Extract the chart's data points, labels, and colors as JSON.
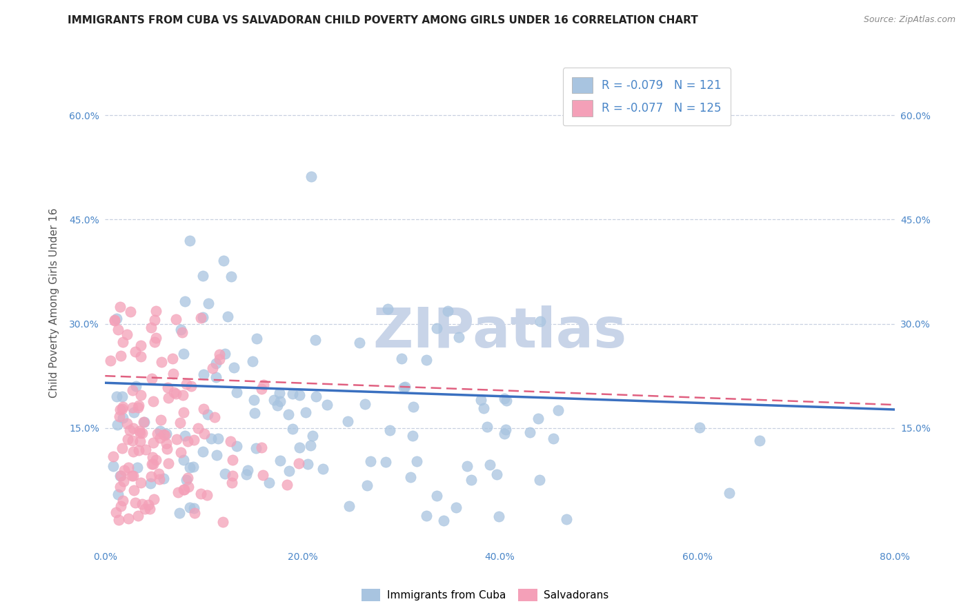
{
  "title": "IMMIGRANTS FROM CUBA VS SALVADORAN CHILD POVERTY AMONG GIRLS UNDER 16 CORRELATION CHART",
  "source": "Source: ZipAtlas.com",
  "ylabel": "Child Poverty Among Girls Under 16",
  "xlim": [
    0.0,
    0.8
  ],
  "ylim": [
    -0.02,
    0.68
  ],
  "xticks": [
    0.0,
    0.1,
    0.2,
    0.3,
    0.4,
    0.5,
    0.6,
    0.7,
    0.8
  ],
  "yticks": [
    0.0,
    0.15,
    0.3,
    0.45,
    0.6
  ],
  "ytick_labels": [
    "",
    "15.0%",
    "30.0%",
    "45.0%",
    "60.0%"
  ],
  "xtick_labels": [
    "0.0%",
    "",
    "20.0%",
    "",
    "40.0%",
    "",
    "60.0%",
    "",
    "80.0%"
  ],
  "series1_color": "#a8c4e0",
  "series2_color": "#f4a0b8",
  "line1_color": "#3a70c0",
  "line2_color": "#e06080",
  "watermark": "ZIPatlas",
  "watermark_color": "#c8d4e8",
  "tick_color": "#4a86c8",
  "grid_color": "#c8d0e0",
  "background_color": "#ffffff",
  "title_color": "#222222",
  "title_fontsize": 11,
  "axis_label_color": "#555555",
  "n1": 121,
  "n2": 125,
  "r1": -0.079,
  "r2": -0.077,
  "line1_intercept": 0.215,
  "line1_slope": -0.048,
  "line2_intercept": 0.225,
  "line2_slope": -0.052,
  "seed1": 7,
  "seed2": 15
}
